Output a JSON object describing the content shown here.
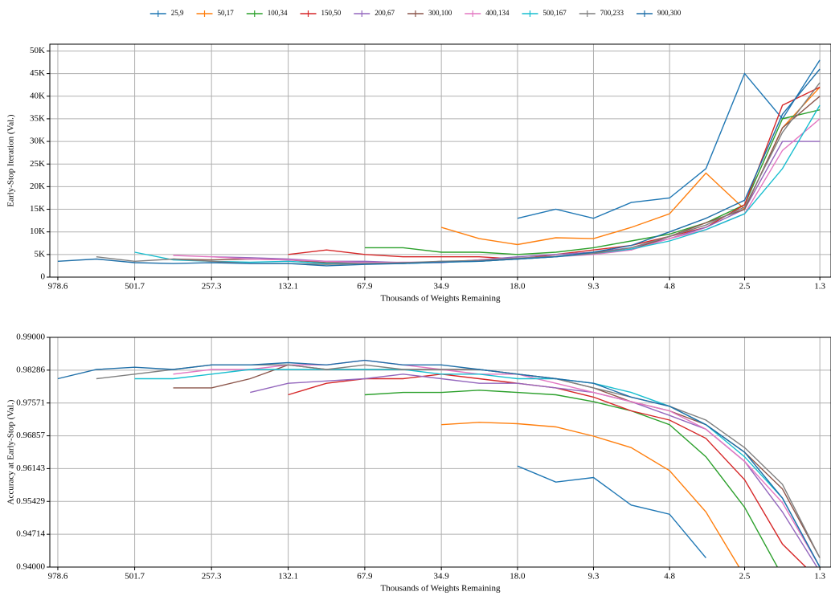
{
  "chart_data": [
    {
      "type": "line",
      "ylabel": "Early-Stop Iteration (Val.)",
      "xlabel": "Thousands of Weights Remaining",
      "log_x": true,
      "grid": true,
      "legend": "top",
      "xlim": [
        1049,
        1.18
      ],
      "xticks": [
        978.6,
        501.7,
        257.3,
        132.1,
        67.9,
        34.9,
        {
          "value": 18.0,
          "label": "18.0"
        },
        9.3,
        4.8,
        2.5,
        1.3
      ],
      "ylim": [
        0,
        51500
      ],
      "yticks": [
        0,
        {
          "value": 5000,
          "label": "5K"
        },
        {
          "value": 10000,
          "label": "10K"
        },
        {
          "value": 15000,
          "label": "15K"
        },
        {
          "value": 20000,
          "label": "20K"
        },
        {
          "value": 25000,
          "label": "25K"
        },
        {
          "value": 30000,
          "label": "30K"
        },
        {
          "value": 35000,
          "label": "35K"
        },
        {
          "value": 40000,
          "label": "40K"
        },
        {
          "value": 45000,
          "label": "45K"
        },
        {
          "value": 50000,
          "label": "50K"
        }
      ],
      "x": [
        978.6,
        700,
        501.7,
        359,
        257.3,
        184,
        132.1,
        94.7,
        67.9,
        48.7,
        34.9,
        25.1,
        18.0,
        12.9,
        9.3,
        6.7,
        4.8,
        3.5,
        2.5,
        1.8,
        1.3
      ],
      "series": [
        {
          "name": "25,9",
          "color": "#1f77b4",
          "values": [
            null,
            null,
            null,
            null,
            null,
            null,
            null,
            null,
            null,
            null,
            null,
            null,
            13000,
            15000,
            13000,
            16500,
            17500,
            24000,
            45000,
            35000,
            48000
          ]
        },
        {
          "name": "50,17",
          "color": "#ff7f0e",
          "values": [
            null,
            null,
            null,
            null,
            null,
            null,
            null,
            null,
            null,
            null,
            11000,
            8500,
            7200,
            8700,
            8500,
            11000,
            14000,
            23000,
            15000,
            33000,
            42000
          ]
        },
        {
          "name": "100,34",
          "color": "#2ca02c",
          "values": [
            null,
            null,
            null,
            null,
            null,
            null,
            null,
            null,
            6500,
            6500,
            5500,
            5500,
            5000,
            5500,
            6500,
            8000,
            9500,
            12000,
            16000,
            35000,
            37000
          ]
        },
        {
          "name": "150,50",
          "color": "#d62728",
          "values": [
            null,
            null,
            null,
            null,
            null,
            null,
            5000,
            6000,
            5000,
            4500,
            4500,
            4500,
            4000,
            5000,
            6000,
            7000,
            9000,
            11000,
            16000,
            38000,
            42000
          ]
        },
        {
          "name": "200,67",
          "color": "#9467bd",
          "values": [
            null,
            null,
            null,
            null,
            4500,
            4300,
            4000,
            3500,
            3500,
            3200,
            3200,
            3800,
            4500,
            5000,
            5500,
            6500,
            8500,
            11000,
            15000,
            30000,
            30000
          ]
        },
        {
          "name": "300,100",
          "color": "#8c564b",
          "values": [
            null,
            null,
            null,
            4000,
            3800,
            4000,
            3800,
            3200,
            3200,
            3000,
            3500,
            3500,
            4000,
            4500,
            5500,
            6000,
            9000,
            12000,
            15000,
            33000,
            40000
          ]
        },
        {
          "name": "400,134",
          "color": "#e377c2",
          "values": [
            null,
            null,
            null,
            4800,
            4500,
            4000,
            3800,
            3500,
            3200,
            3300,
            3300,
            3800,
            4200,
            4500,
            5000,
            6000,
            8500,
            10500,
            14000,
            28000,
            35000
          ]
        },
        {
          "name": "500,167",
          "color": "#17becf",
          "values": [
            null,
            null,
            5500,
            3800,
            3500,
            3300,
            3500,
            3000,
            3000,
            3000,
            3300,
            3500,
            4000,
            4500,
            5200,
            6200,
            8000,
            10500,
            14000,
            24000,
            38000
          ]
        },
        {
          "name": "700,233",
          "color": "#7f7f7f",
          "values": [
            null,
            4500,
            3500,
            4000,
            3500,
            3000,
            3000,
            2800,
            3000,
            3200,
            3500,
            3700,
            4200,
            4600,
            5200,
            6500,
            9000,
            11500,
            15500,
            32000,
            43000
          ]
        },
        {
          "name": "900,300",
          "color": "#1f6fa8",
          "values": [
            3500,
            4000,
            3200,
            3000,
            3200,
            3000,
            3000,
            2500,
            2800,
            3000,
            3300,
            3500,
            4000,
            4500,
            5500,
            7000,
            10000,
            13000,
            17000,
            36000,
            46000
          ]
        }
      ]
    },
    {
      "type": "line",
      "ylabel": "Accuracy at Early-Stop (Val.)",
      "xlabel": "Thousands of Weights Remaining",
      "log_x": true,
      "grid": true,
      "xlim": [
        1049,
        1.18
      ],
      "xticks": [
        978.6,
        501.7,
        257.3,
        132.1,
        67.9,
        34.9,
        {
          "value": 18.0,
          "label": "18.0"
        },
        9.3,
        4.8,
        2.5,
        1.3
      ],
      "ylim": [
        0.94,
        0.99
      ],
      "yticks": [
        {
          "value": 0.94,
          "label": "0.94000"
        },
        0.94714,
        0.95429,
        0.96143,
        0.96857,
        0.97571,
        0.98286,
        {
          "value": 0.99,
          "label": "0.99000"
        }
      ],
      "x": [
        978.6,
        700,
        501.7,
        359,
        257.3,
        184,
        132.1,
        94.7,
        67.9,
        48.7,
        34.9,
        25.1,
        18.0,
        12.9,
        9.3,
        6.7,
        4.8,
        3.5,
        2.5,
        1.8,
        1.3
      ],
      "series": [
        {
          "color": "#1f77b4",
          "values": [
            null,
            null,
            null,
            null,
            null,
            null,
            null,
            null,
            null,
            null,
            null,
            null,
            0.962,
            0.9585,
            0.9595,
            0.9535,
            0.9515,
            0.942,
            null,
            null,
            null
          ]
        },
        {
          "color": "#ff7f0e",
          "values": [
            null,
            null,
            null,
            null,
            null,
            null,
            null,
            null,
            null,
            null,
            0.971,
            0.9715,
            0.9712,
            0.9705,
            0.9685,
            0.966,
            0.961,
            0.952,
            0.938,
            null,
            null
          ]
        },
        {
          "color": "#2ca02c",
          "values": [
            null,
            null,
            null,
            null,
            null,
            null,
            null,
            null,
            0.9775,
            0.978,
            0.978,
            0.9785,
            0.978,
            0.9775,
            0.976,
            0.974,
            0.971,
            0.964,
            0.953,
            0.938,
            null
          ]
        },
        {
          "color": "#d62728",
          "values": [
            null,
            null,
            null,
            null,
            null,
            null,
            0.9775,
            0.98,
            0.981,
            0.981,
            0.982,
            0.981,
            0.98,
            0.979,
            0.977,
            0.974,
            0.972,
            0.968,
            0.959,
            0.945,
            0.937
          ]
        },
        {
          "color": "#9467bd",
          "values": [
            null,
            null,
            null,
            null,
            null,
            0.978,
            0.98,
            0.9805,
            0.981,
            0.982,
            0.981,
            0.98,
            0.98,
            0.979,
            0.978,
            0.976,
            0.973,
            0.97,
            0.963,
            0.952,
            0.939
          ]
        },
        {
          "color": "#8c564b",
          "values": [
            null,
            null,
            null,
            0.979,
            0.979,
            0.981,
            0.984,
            0.983,
            0.983,
            0.983,
            0.983,
            0.983,
            0.982,
            0.981,
            0.979,
            0.976,
            0.974,
            0.971,
            0.965,
            0.957,
            0.942
          ]
        },
        {
          "color": "#e377c2",
          "values": [
            null,
            null,
            null,
            0.982,
            0.983,
            0.983,
            0.984,
            0.984,
            0.985,
            0.984,
            0.983,
            0.982,
            0.982,
            0.98,
            0.978,
            0.976,
            0.974,
            0.97,
            0.963,
            0.954,
            0.94
          ]
        },
        {
          "color": "#17becf",
          "values": [
            null,
            null,
            0.981,
            0.981,
            0.982,
            0.983,
            0.983,
            0.983,
            0.983,
            0.983,
            0.982,
            0.982,
            0.981,
            0.981,
            0.98,
            0.978,
            0.975,
            0.971,
            0.964,
            0.955,
            0.94
          ]
        },
        {
          "color": "#7f7f7f",
          "values": [
            null,
            0.981,
            0.982,
            0.983,
            0.984,
            0.984,
            0.984,
            0.983,
            0.984,
            0.983,
            0.983,
            0.983,
            0.982,
            0.981,
            0.979,
            0.977,
            0.975,
            0.972,
            0.966,
            0.958,
            0.942
          ]
        },
        {
          "color": "#1f6fa8",
          "values": [
            0.981,
            0.983,
            0.9835,
            0.983,
            0.984,
            0.984,
            0.9845,
            0.984,
            0.985,
            0.984,
            0.984,
            0.983,
            0.982,
            0.981,
            0.98,
            0.977,
            0.975,
            0.971,
            0.965,
            0.955,
            0.94
          ]
        }
      ]
    }
  ]
}
